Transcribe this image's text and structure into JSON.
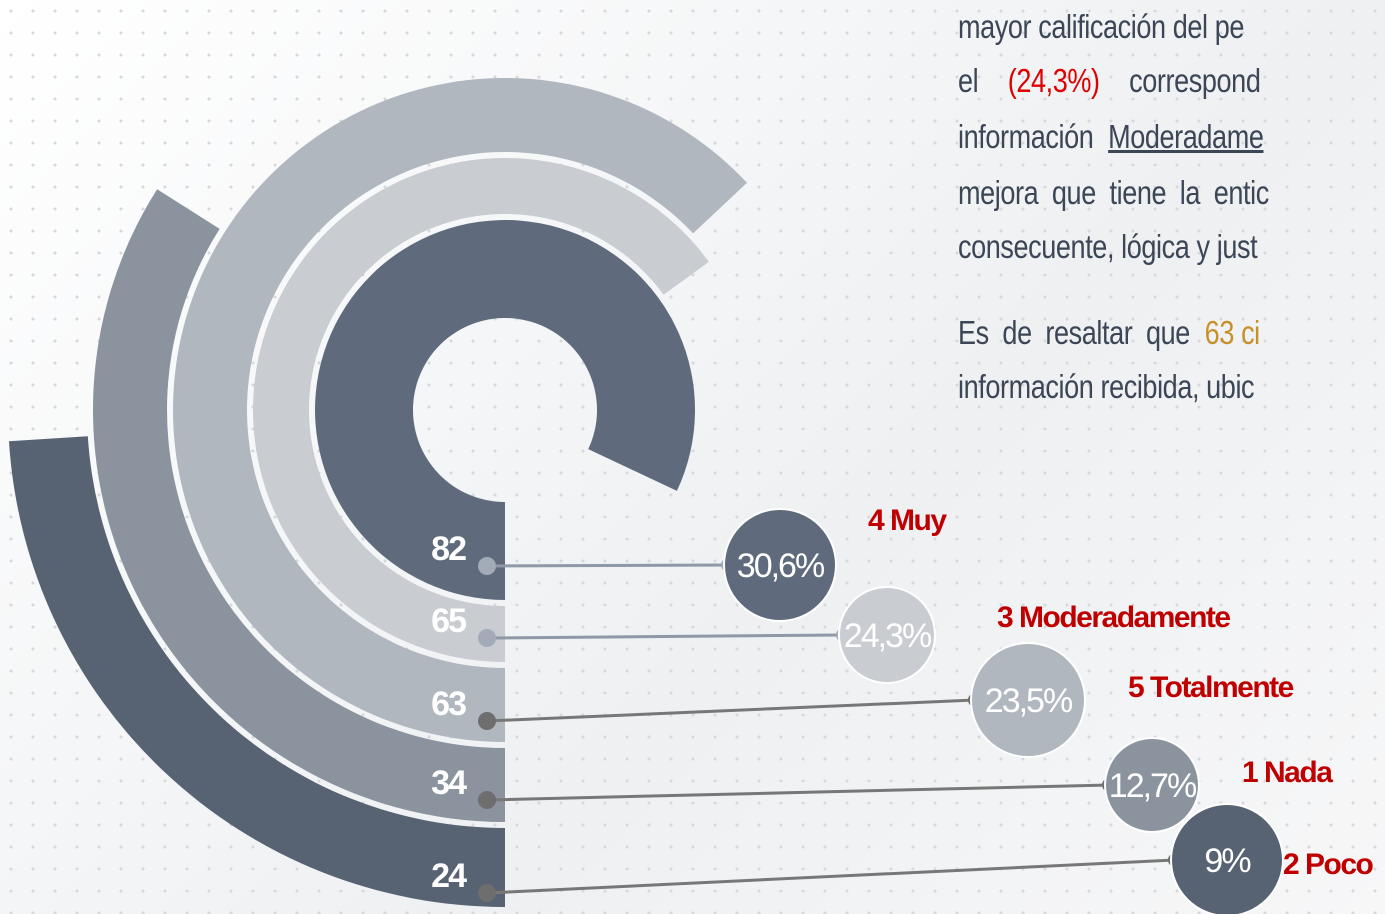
{
  "chart_data": {
    "type": "radial_bar",
    "categories": [
      "4 Muy",
      "3 Moderadamente",
      "5 Totalmente",
      "1 Nada",
      "2 Poco"
    ],
    "values": [
      82,
      65,
      63,
      34,
      24
    ],
    "percentages": [
      30.6,
      24.3,
      23.5,
      12.7,
      9
    ],
    "percentage_labels": [
      "30,6%",
      "24,3%",
      "23,5%",
      "12,7%",
      "9%"
    ],
    "colors": [
      "#5f6b7c",
      "#c9ccd1",
      "#b1b7bf",
      "#8b939e",
      "#576272"
    ]
  },
  "text": {
    "lines": [
      [
        "mayor calificación del pe"
      ],
      [
        "el",
        "(24,3%)",
        "correspond"
      ],
      [
        "información",
        "Moderadame"
      ],
      [
        "mejora que tiene la entic"
      ],
      [
        "consecuente, lógica y just"
      ],
      [
        "Es de resaltar que",
        "63 ci"
      ],
      [
        "información recibida, ubic"
      ]
    ]
  }
}
